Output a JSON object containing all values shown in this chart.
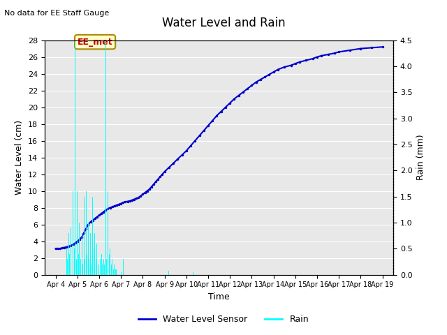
{
  "title": "Water Level and Rain",
  "subtitle": "No data for EE Staff Gauge",
  "xlabel": "Time",
  "ylabel_left": "Water Level (cm)",
  "ylabel_right": "Rain (mm)",
  "ylim_left": [
    0,
    28
  ],
  "ylim_right": [
    0,
    4.5
  ],
  "yticks_left": [
    0,
    2,
    4,
    6,
    8,
    10,
    12,
    14,
    16,
    18,
    20,
    22,
    24,
    26,
    28
  ],
  "yticks_right": [
    0.0,
    0.5,
    1.0,
    1.5,
    2.0,
    2.5,
    3.0,
    3.5,
    4.0,
    4.5
  ],
  "bg_color": "#e8e8e8",
  "water_color": "#0000cc",
  "rain_color": "#00ffff",
  "annotation_text": "EE_met",
  "annotation_color": "#cc0000",
  "annotation_bg": "#ffffcc",
  "legend_water": "Water Level Sensor",
  "legend_rain": "Rain",
  "water_level_x": [
    0,
    0.1,
    0.2,
    0.3,
    0.4,
    0.5,
    0.6,
    0.7,
    0.8,
    0.9,
    1.0,
    1.1,
    1.2,
    1.3,
    1.4,
    1.5,
    1.6,
    1.7,
    1.8,
    1.9,
    2.0,
    2.1,
    2.2,
    2.3,
    2.4,
    2.5,
    2.6,
    2.7,
    2.8,
    2.9,
    3.0,
    3.1,
    3.2,
    3.3,
    3.4,
    3.5,
    3.6,
    3.7,
    3.8,
    3.9,
    4.0,
    4.1,
    4.2,
    4.3,
    4.4,
    4.5,
    4.6,
    4.7,
    4.8,
    4.9,
    5.0,
    5.2,
    5.4,
    5.6,
    5.8,
    6.0,
    6.2,
    6.4,
    6.6,
    6.8,
    7.0,
    7.2,
    7.4,
    7.6,
    7.8,
    8.0,
    8.2,
    8.4,
    8.6,
    8.8,
    9.0,
    9.2,
    9.4,
    9.6,
    9.8,
    10.0,
    10.2,
    10.5,
    10.8,
    11.0,
    11.2,
    11.5,
    11.8,
    12.0,
    12.2,
    12.5,
    12.8,
    13.0,
    13.5,
    14.0,
    14.5,
    15.0
  ],
  "water_level_y": [
    3.1,
    3.1,
    3.1,
    3.2,
    3.25,
    3.3,
    3.4,
    3.5,
    3.6,
    3.8,
    4.0,
    4.2,
    4.5,
    5.0,
    5.5,
    6.0,
    6.3,
    6.5,
    6.7,
    6.9,
    7.1,
    7.3,
    7.5,
    7.7,
    7.9,
    8.0,
    8.1,
    8.2,
    8.3,
    8.4,
    8.5,
    8.6,
    8.7,
    8.75,
    8.8,
    8.9,
    9.0,
    9.1,
    9.2,
    9.4,
    9.6,
    9.8,
    10.0,
    10.2,
    10.5,
    10.8,
    11.1,
    11.4,
    11.7,
    12.0,
    12.3,
    12.8,
    13.3,
    13.8,
    14.3,
    14.8,
    15.4,
    16.0,
    16.6,
    17.2,
    17.8,
    18.4,
    19.0,
    19.5,
    20.0,
    20.5,
    21.0,
    21.4,
    21.8,
    22.2,
    22.6,
    23.0,
    23.3,
    23.6,
    23.9,
    24.2,
    24.5,
    24.8,
    25.0,
    25.2,
    25.4,
    25.6,
    25.8,
    26.0,
    26.15,
    26.3,
    26.45,
    26.6,
    26.8,
    27.0,
    27.1,
    27.2
  ],
  "rain_x": [
    0.5,
    0.55,
    0.6,
    0.65,
    0.7,
    0.75,
    0.8,
    0.85,
    0.9,
    0.95,
    1.0,
    1.05,
    1.1,
    1.15,
    1.2,
    1.25,
    1.3,
    1.35,
    1.4,
    1.45,
    1.5,
    1.55,
    1.6,
    1.65,
    1.7,
    1.75,
    1.8,
    1.85,
    1.9,
    1.95,
    2.0,
    2.05,
    2.1,
    2.15,
    2.2,
    2.25,
    2.3,
    2.35,
    2.4,
    2.45,
    2.5,
    2.55,
    2.6,
    2.65,
    2.7,
    2.75,
    2.8,
    3.0,
    3.1,
    5.2,
    6.3
  ],
  "rain_y": [
    0.5,
    0.3,
    0.8,
    0.4,
    0.9,
    0.6,
    1.6,
    0.5,
    4.5,
    0.3,
    1.6,
    0.4,
    1.0,
    0.3,
    0.8,
    0.2,
    1.5,
    0.3,
    1.6,
    0.4,
    1.0,
    0.3,
    0.8,
    0.2,
    1.5,
    0.5,
    0.8,
    0.3,
    0.6,
    0.2,
    0.5,
    0.3,
    0.4,
    0.2,
    0.3,
    0.2,
    9.8,
    0.3,
    1.6,
    0.4,
    0.5,
    0.2,
    0.3,
    0.1,
    0.2,
    0.1,
    0.1,
    0.05,
    0.3,
    0.08,
    0.05
  ],
  "xtick_positions": [
    0,
    1,
    2,
    3,
    4,
    5,
    6,
    7,
    8,
    9,
    10,
    11,
    12,
    13,
    14,
    15
  ],
  "xtick_labels": [
    "Apr 4",
    "Apr 5",
    "Apr 6",
    "Apr 7",
    "Apr 8",
    "Apr 9",
    "Apr 10",
    "Apr 11",
    "Apr 12",
    "Apr 13",
    "Apr 14",
    "Apr 15",
    "Apr 16",
    "Apr 17",
    "Apr 18",
    "Apr 19"
  ]
}
